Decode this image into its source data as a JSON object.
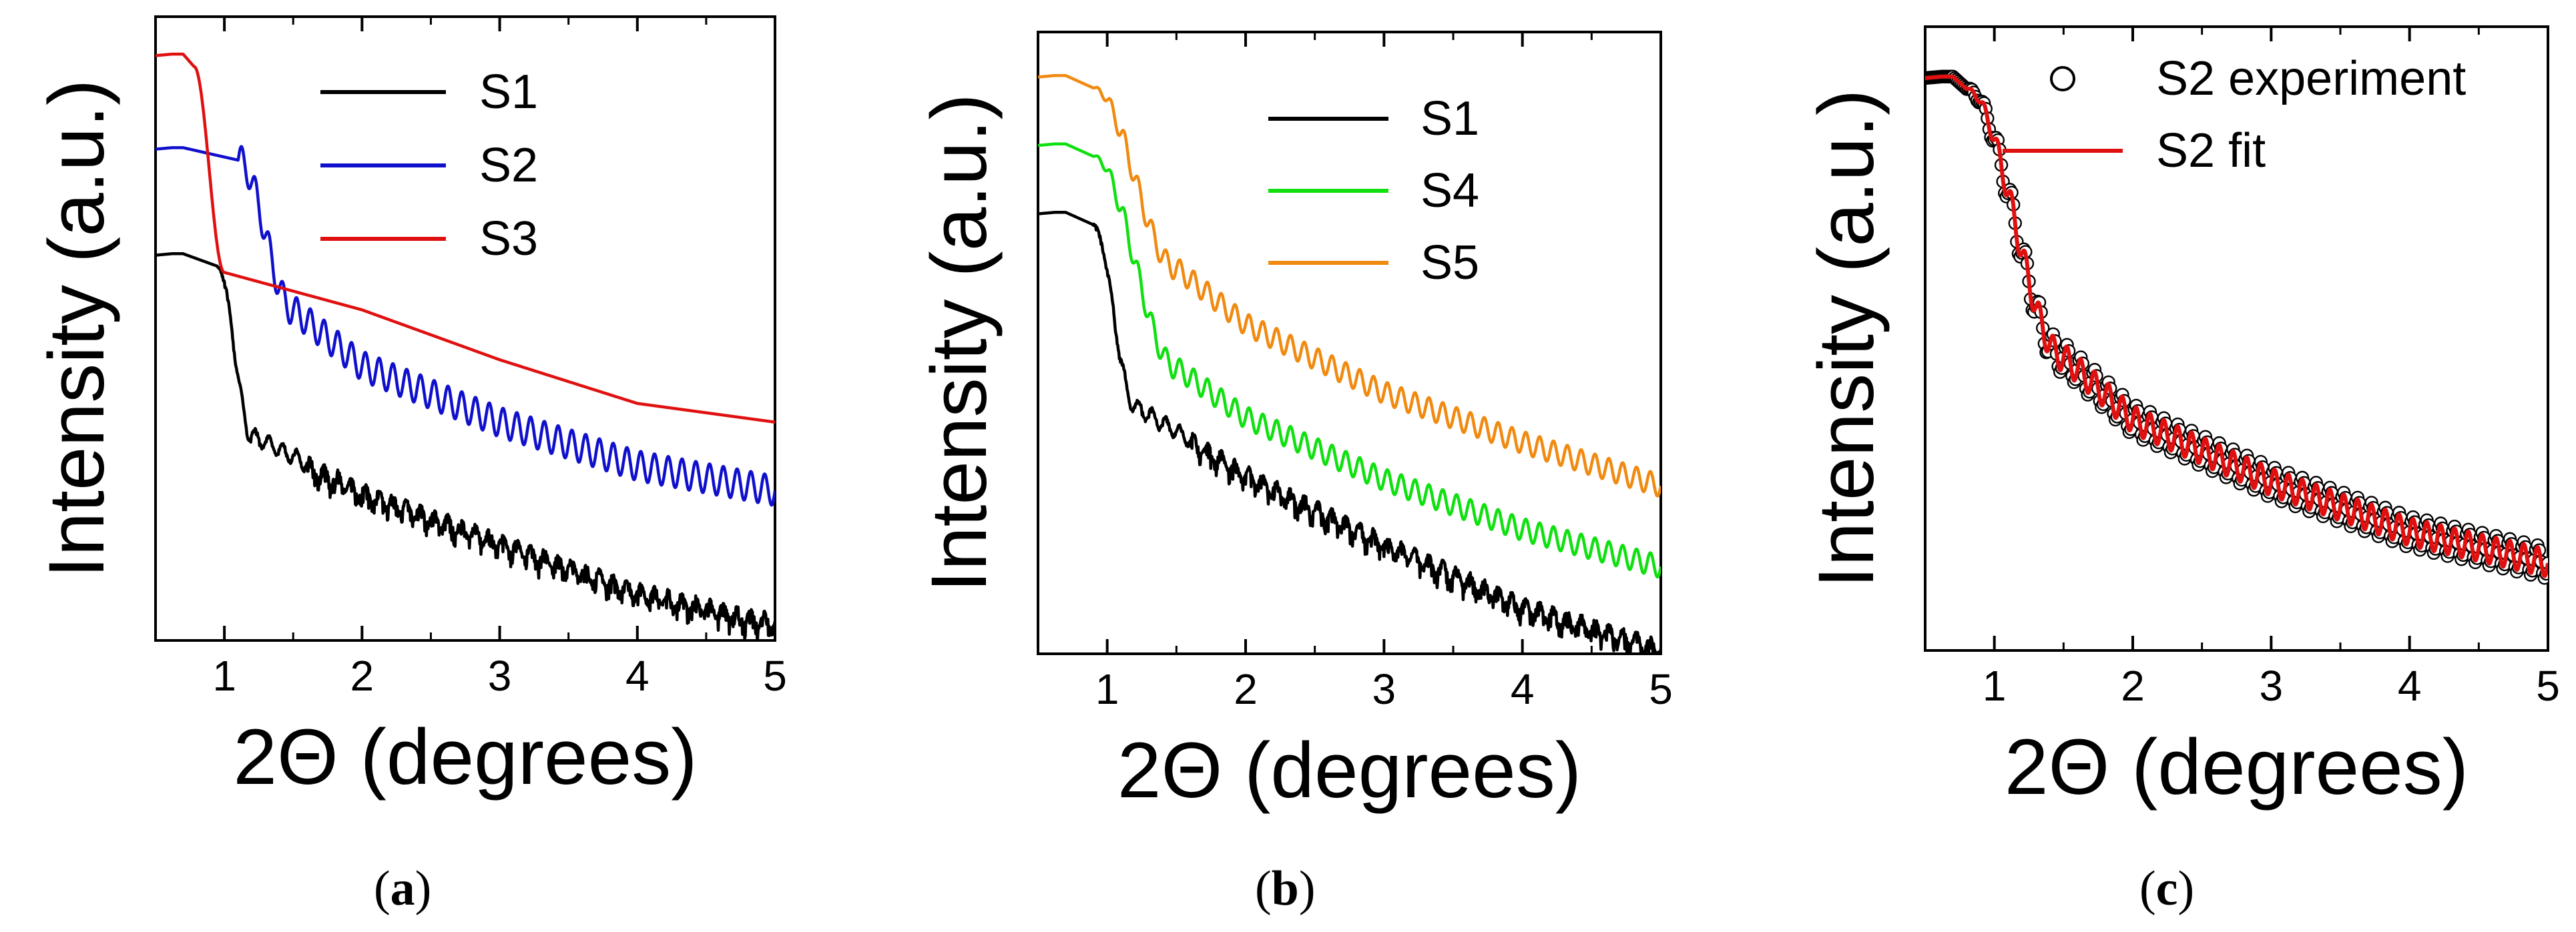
{
  "chart_data": [
    {
      "type": "line",
      "panel_label": "a",
      "xlabel": "2Θ (degrees)",
      "ylabel": "Intensity (a.u.)",
      "xlim": [
        0.5,
        5
      ],
      "ylim": [
        0,
        1
      ],
      "xticks": [
        1,
        2,
        3,
        4,
        5
      ],
      "xtick_labels": [
        "1",
        "2",
        "3",
        "4",
        "5"
      ],
      "legend_position": "top-center",
      "series": [
        {
          "name": "S1",
          "color": "#000000",
          "plateau": 0.62,
          "knee": 0.95,
          "decay": [
            [
              1.2,
              0.33
            ],
            [
              2,
              0.24
            ],
            [
              3,
              0.16
            ],
            [
              4,
              0.08
            ],
            [
              5,
              0.03
            ]
          ],
          "fringe_amp": 0.012,
          "fringe_period": 0.1,
          "noise": 0.012
        },
        {
          "name": "S2",
          "color": "#1010cc",
          "plateau": 0.79,
          "knee": 1.1,
          "decay": [
            [
              1.5,
              0.53
            ],
            [
              2,
              0.44
            ],
            [
              3,
              0.35
            ],
            [
              4,
              0.28
            ],
            [
              5,
              0.24
            ]
          ],
          "fringe_amp": 0.024,
          "fringe_period": 0.1,
          "noise": 0
        },
        {
          "name": "S3",
          "color": "#e01010",
          "plateau": 0.94,
          "knee": 0.78,
          "decay": [
            [
              1,
              0.59
            ],
            [
              2,
              0.53
            ],
            [
              3,
              0.45
            ],
            [
              4,
              0.38
            ],
            [
              5,
              0.35
            ]
          ],
          "fringe_amp": 0,
          "fringe_period": 0.1,
          "noise": 0
        }
      ]
    },
    {
      "type": "line",
      "panel_label": "b",
      "xlabel": "2Θ (degrees)",
      "ylabel": "Intensity (a.u.)",
      "xlim": [
        0.5,
        5
      ],
      "ylim": [
        0,
        1
      ],
      "xticks": [
        1,
        2,
        3,
        4,
        5
      ],
      "xtick_labels": [
        "1",
        "2",
        "3",
        "4",
        "5"
      ],
      "legend_position": "top-center",
      "series": [
        {
          "name": "S1",
          "color": "#000000",
          "plateau": 0.71,
          "knee": 0.9,
          "decay": [
            [
              1.2,
              0.4
            ],
            [
              2,
              0.29
            ],
            [
              3,
              0.18
            ],
            [
              4,
              0.08
            ],
            [
              5,
              0.01
            ]
          ],
          "fringe_amp": 0.012,
          "fringe_period": 0.1,
          "noise": 0.012
        },
        {
          "name": "S4",
          "color": "#10e010",
          "plateau": 0.82,
          "knee": 0.9,
          "decay": [
            [
              1.5,
              0.46
            ],
            [
              2,
              0.38
            ],
            [
              3,
              0.28
            ],
            [
              4,
              0.2
            ],
            [
              5,
              0.14
            ]
          ],
          "fringe_amp": 0.018,
          "fringe_period": 0.1,
          "noise": 0
        },
        {
          "name": "S5",
          "color": "#f08a10",
          "plateau": 0.93,
          "knee": 0.9,
          "decay": [
            [
              1.5,
              0.62
            ],
            [
              2,
              0.53
            ],
            [
              3,
              0.42
            ],
            [
              4,
              0.34
            ],
            [
              5,
              0.27
            ]
          ],
          "fringe_amp": 0.018,
          "fringe_period": 0.1,
          "noise": 0
        }
      ]
    },
    {
      "type": "line",
      "panel_label": "c",
      "xlabel": "2Θ (degrees)",
      "ylabel": "Intensity (a.u.)",
      "xlim": [
        0.5,
        5
      ],
      "ylim": [
        0,
        1
      ],
      "xticks": [
        1,
        2,
        3,
        4,
        5
      ],
      "xtick_labels": [
        "1",
        "2",
        "3",
        "4",
        "5"
      ],
      "legend_position": "top-right",
      "series": [
        {
          "name": "S2 experiment",
          "color": "#000000",
          "style": "open-circle",
          "plateau": 0.92,
          "knee": 0.8,
          "decay": [
            [
              1.5,
              0.47
            ],
            [
              2,
              0.37
            ],
            [
              3,
              0.27
            ],
            [
              4,
              0.19
            ],
            [
              5,
              0.14
            ]
          ],
          "fringe_amp": 0.025,
          "fringe_period": 0.1,
          "noise": 0
        },
        {
          "name": "S2 fit",
          "color": "#e01010",
          "style": "line",
          "plateau": 0.92,
          "knee": 0.8,
          "decay": [
            [
              1.5,
              0.47
            ],
            [
              2,
              0.37
            ],
            [
              3,
              0.27
            ],
            [
              4,
              0.19
            ],
            [
              5,
              0.14
            ]
          ],
          "fringe_amp": 0.022,
          "fringe_period": 0.1,
          "noise": 0
        }
      ]
    }
  ]
}
